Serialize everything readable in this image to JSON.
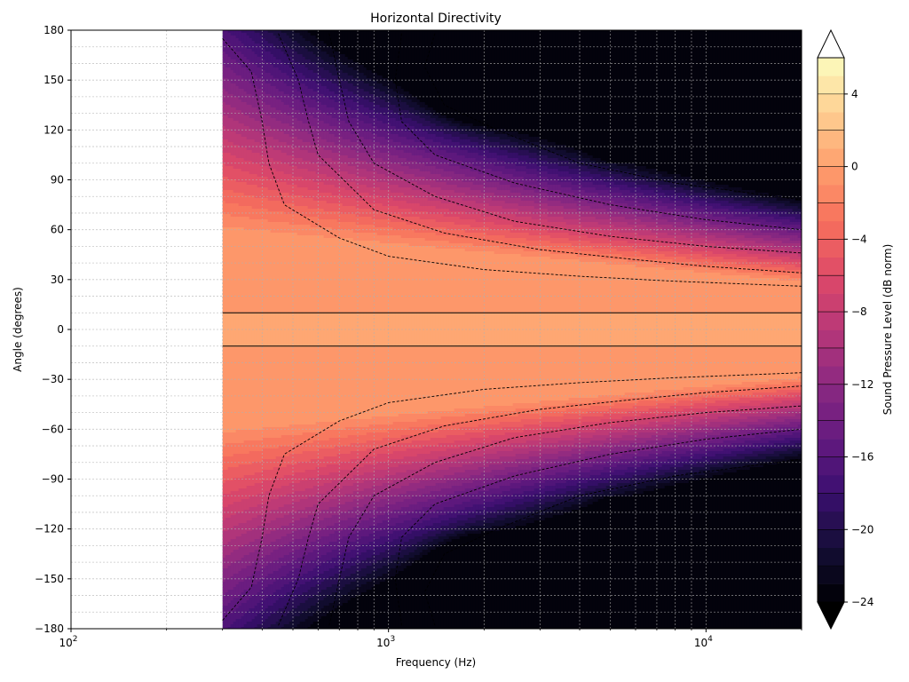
{
  "chart_data": {
    "type": "heatmap",
    "title": "Horizontal Directivity",
    "xlabel": "Frequency (Hz)",
    "ylabel": "Angle (degrees)",
    "xscale": "log",
    "xlim": [
      100,
      20000
    ],
    "ylim": [
      -180,
      180
    ],
    "grid": true,
    "data_start_frequency_hz": 300,
    "x_ticks": [
      {
        "value": 100,
        "base": "10",
        "exp": "2"
      },
      {
        "value": 1000,
        "base": "10",
        "exp": "3"
      },
      {
        "value": 10000,
        "base": "10",
        "exp": "4"
      }
    ],
    "y_ticks": [
      {
        "value": 180,
        "label": "180"
      },
      {
        "value": 150,
        "label": "150"
      },
      {
        "value": 120,
        "label": "120"
      },
      {
        "value": 90,
        "label": "90"
      },
      {
        "value": 60,
        "label": "60"
      },
      {
        "value": 30,
        "label": "30"
      },
      {
        "value": 0,
        "label": "0"
      },
      {
        "value": -30,
        "label": "−30"
      },
      {
        "value": -60,
        "label": "−60"
      },
      {
        "value": -90,
        "label": "−90"
      },
      {
        "value": -120,
        "label": "−120"
      },
      {
        "value": -150,
        "label": "−150"
      },
      {
        "value": -180,
        "label": "−180"
      }
    ],
    "reference_lines_deg": [
      10,
      -10
    ],
    "colorbar": {
      "label": "Sound Pressure Level (dB norm)",
      "colormap": "magma",
      "range": [
        -24,
        6
      ],
      "step": 1,
      "extend": "both",
      "tick_values": [
        4,
        0,
        -4,
        -8,
        -12,
        -16,
        -20,
        -24
      ],
      "tick_labels": [
        "4",
        "0",
        "−4",
        "−8",
        "−12",
        "−16",
        "−20",
        "−24"
      ]
    },
    "contour_levels_db": [
      -3,
      -6,
      -9,
      -12,
      -15,
      -18,
      -21
    ],
    "beamwidth_contours": [
      {
        "level_db": -3,
        "points": [
          [
            300,
            175
          ],
          [
            370,
            155
          ],
          [
            400,
            125
          ],
          [
            420,
            100
          ],
          [
            470,
            75
          ],
          [
            700,
            55
          ],
          [
            1000,
            44
          ],
          [
            2000,
            36
          ],
          [
            4000,
            32
          ],
          [
            8000,
            29
          ],
          [
            20000,
            26
          ]
        ]
      },
      {
        "level_db": -6,
        "points": [
          [
            450,
            178
          ],
          [
            520,
            150
          ],
          [
            560,
            125
          ],
          [
            600,
            105
          ],
          [
            900,
            72
          ],
          [
            1500,
            58
          ],
          [
            3000,
            48
          ],
          [
            6000,
            42
          ],
          [
            10000,
            38
          ],
          [
            20000,
            34
          ]
        ]
      },
      {
        "level_db": -9,
        "points": [
          [
            650,
            178
          ],
          [
            700,
            150
          ],
          [
            750,
            125
          ],
          [
            900,
            100
          ],
          [
            1400,
            80
          ],
          [
            2500,
            65
          ],
          [
            5000,
            56
          ],
          [
            10000,
            50
          ],
          [
            20000,
            46
          ]
        ]
      },
      {
        "level_db": -12,
        "points": [
          [
            1100,
            178
          ],
          [
            1050,
            150
          ],
          [
            1100,
            125
          ],
          [
            1400,
            105
          ],
          [
            2500,
            88
          ],
          [
            5000,
            75
          ],
          [
            10000,
            66
          ],
          [
            20000,
            60
          ]
        ]
      },
      {
        "level_db": -15,
        "points": [
          [
            1400,
            178
          ],
          [
            1300,
            158
          ],
          [
            1500,
            135
          ],
          [
            2200,
            120
          ],
          [
            4000,
            100
          ],
          [
            8000,
            88
          ],
          [
            20000,
            78
          ]
        ]
      }
    ],
    "regions": [
      {
        "description_db": 0,
        "angle_range_deg": [
          -10,
          10
        ],
        "freq_range_hz": [
          300,
          20000
        ]
      },
      {
        "description_db": -24,
        "angle_range_deg": [
          100,
          180
        ],
        "freq_range_hz": [
          4000,
          20000
        ]
      },
      {
        "description_db": -24,
        "angle_range_deg": [
          -180,
          -100
        ],
        "freq_range_hz": [
          4000,
          20000
        ]
      }
    ]
  }
}
